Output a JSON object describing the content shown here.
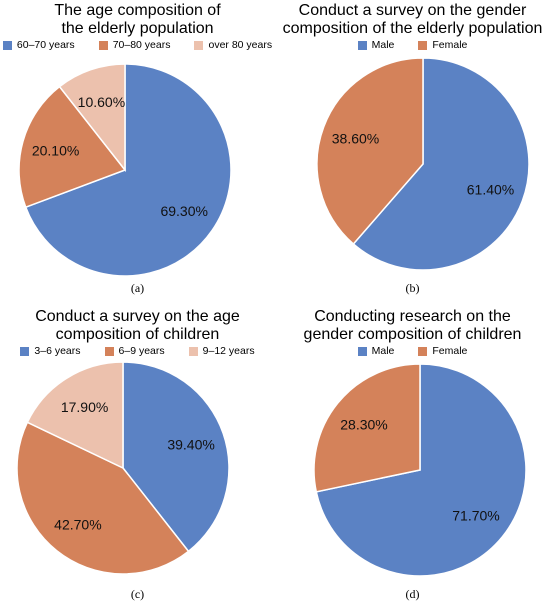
{
  "colors": {
    "blue": "#5b82c4",
    "orange": "#d4825a",
    "pink": "#ecc1ad"
  },
  "chart_data": [
    {
      "type": "pie",
      "title": "The age composition of\nthe elderly population",
      "caption": "(a)",
      "categories": [
        "60–70 years",
        "70–80 years",
        "over 80 years"
      ],
      "values": [
        69.3,
        20.1,
        10.6
      ],
      "labels": [
        "69.30%",
        "20.10%",
        "10.60%"
      ],
      "legend_position": "top"
    },
    {
      "type": "pie",
      "title": "Conduct a survey on the gender\ncomposition of the elderly population",
      "caption": "(b)",
      "categories": [
        "Male",
        "Female"
      ],
      "values": [
        61.4,
        38.6
      ],
      "labels": [
        "61.40%",
        "38.60%"
      ],
      "legend_position": "top"
    },
    {
      "type": "pie",
      "title": "Conduct a survey on the age\ncomposition of children",
      "caption": "(c)",
      "categories": [
        "3–6 years",
        "6–9 years",
        "9–12 years"
      ],
      "values": [
        39.4,
        42.7,
        17.9
      ],
      "labels": [
        "39.40%",
        "42.70%",
        "17.90%"
      ],
      "legend_position": "top"
    },
    {
      "type": "pie",
      "title": "Conducting research on the\ngender composition of children",
      "caption": "(d)",
      "categories": [
        "Male",
        "Female"
      ],
      "values": [
        71.7,
        28.3
      ],
      "labels": [
        "71.70%",
        "28.30%"
      ],
      "legend_position": "top"
    }
  ]
}
